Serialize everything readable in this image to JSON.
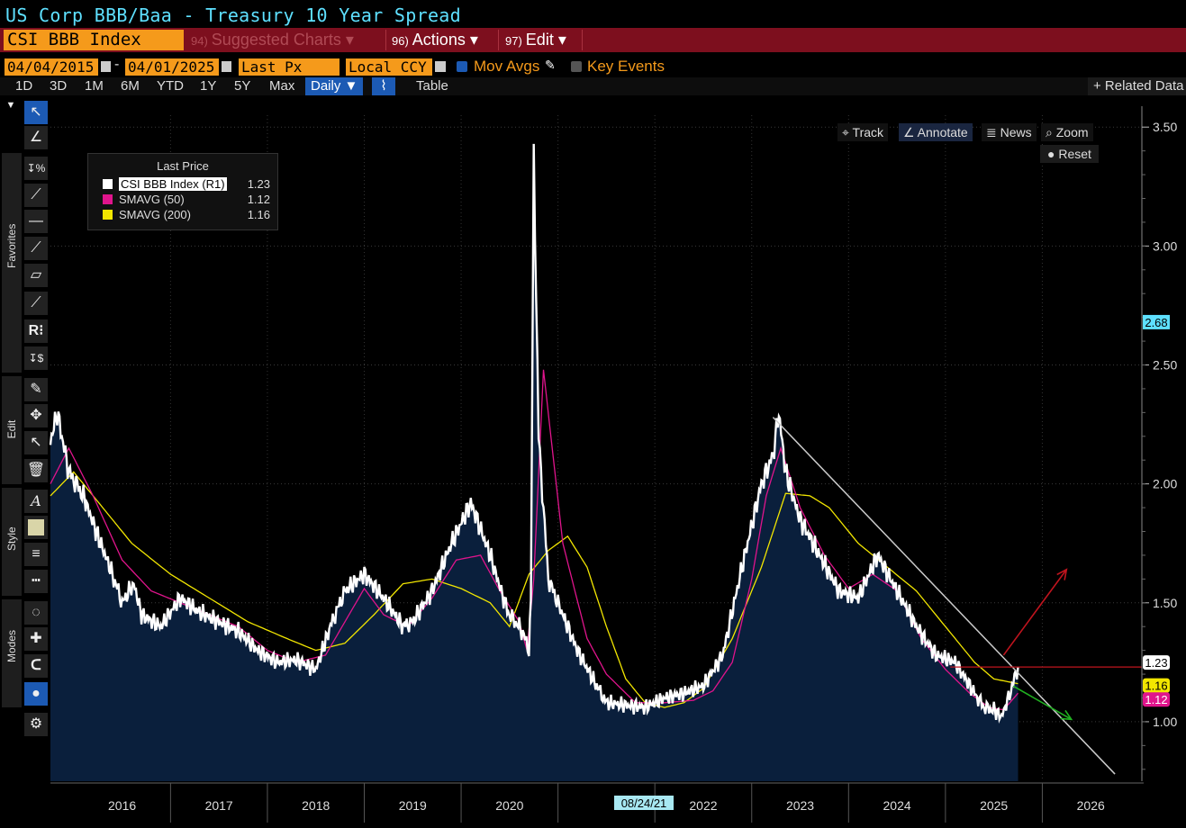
{
  "window": {
    "title": "US Corp BBB/Baa - Treasury 10 Year Spread"
  },
  "actionbar": {
    "ticker": "CSI BBB Index",
    "suggested_num": "94)",
    "suggested_label": "Suggested Charts",
    "actions_num": "96)",
    "actions_label": "Actions",
    "edit_num": "97)",
    "edit_label": "Edit"
  },
  "daterow": {
    "start_date": "04/04/2015",
    "end_date": "04/01/2025",
    "dash": "-",
    "field": "Last Px",
    "currency": "Local CCY",
    "mov_avgs": "Mov Avgs",
    "key_events": "Key Events"
  },
  "ranges": [
    "1D",
    "3D",
    "1M",
    "6M",
    "YTD",
    "1Y",
    "5Y",
    "Max"
  ],
  "range_extra": {
    "frequency": "Daily ▼",
    "table": "Table",
    "related": "+ Related Data"
  },
  "toolbar": {
    "favorites": "Favorites",
    "edit": "Edit",
    "style": "Style",
    "modes": "Modes"
  },
  "zoom": {
    "track": "Track",
    "annotate": "Annotate",
    "news": "News",
    "zoom": "Zoom",
    "reset": "Reset"
  },
  "legend": {
    "header": "Last Price",
    "items": [
      {
        "name": "CSI BBB Index  (R1)",
        "value": "1.23",
        "color": "#ffffff"
      },
      {
        "name": "SMAVG (50)",
        "value": "1.12",
        "color": "#e0148c"
      },
      {
        "name": "SMAVG (200)",
        "value": "1.16",
        "color": "#f2e600"
      }
    ]
  },
  "cursor_date": "08/24/21",
  "colors": {
    "area": "#0a1f3c",
    "price": "#ffffff",
    "sma50": "#e0148c",
    "sma200": "#f2e600",
    "accent": "#f59a1b",
    "bar": "#7d0f1e"
  },
  "chart_data": {
    "type": "line",
    "title": "US Corp BBB/Baa - Treasury 10 Year Spread",
    "xlabel": "",
    "ylabel": "",
    "xlim": [
      2015.26,
      2026.5
    ],
    "ylim": [
      0.75,
      3.55
    ],
    "yticks": [
      1.0,
      1.5,
      2.0,
      2.5,
      3.0,
      3.5
    ],
    "ytick_labels": [
      "1.00",
      "1.50",
      "2.00",
      "2.50",
      "3.00",
      "3.50"
    ],
    "xtick_labels": [
      "2016",
      "2017",
      "2018",
      "2019",
      "2020",
      "2022",
      "2023",
      "2024",
      "2025",
      "2026"
    ],
    "xtick_positions": [
      2016,
      2017,
      2018,
      2019,
      2020,
      2022,
      2023,
      2024,
      2025,
      2026
    ],
    "series": [
      {
        "name": "CSI BBB Index (R1)",
        "x": [
          2015.26,
          2015.33,
          2015.45,
          2015.6,
          2015.75,
          2015.9,
          2016.0,
          2016.12,
          2016.2,
          2016.4,
          2016.6,
          2016.8,
          2017.0,
          2017.2,
          2017.4,
          2017.6,
          2017.8,
          2018.0,
          2018.15,
          2018.3,
          2018.5,
          2018.7,
          2018.9,
          2019.0,
          2019.2,
          2019.4,
          2019.6,
          2019.8,
          2019.95,
          2020.0,
          2020.1,
          2020.16,
          2020.2,
          2020.22,
          2020.25,
          2020.3,
          2020.4,
          2020.5,
          2020.7,
          2020.9,
          2021.0,
          2021.2,
          2021.4,
          2021.6,
          2021.8,
          2022.0,
          2022.2,
          2022.4,
          2022.6,
          2022.72,
          2022.78,
          2022.85,
          2023.0,
          2023.2,
          2023.4,
          2023.6,
          2023.8,
          2024.0,
          2024.2,
          2024.4,
          2024.6,
          2024.8,
          2024.9,
          2025.0,
          2025.08,
          2025.15,
          2025.25
        ],
        "values": [
          2.18,
          2.3,
          2.05,
          1.95,
          1.78,
          1.62,
          1.5,
          1.58,
          1.45,
          1.4,
          1.52,
          1.46,
          1.42,
          1.38,
          1.3,
          1.25,
          1.26,
          1.22,
          1.4,
          1.55,
          1.62,
          1.52,
          1.4,
          1.42,
          1.55,
          1.75,
          1.92,
          1.7,
          1.5,
          1.45,
          1.4,
          1.35,
          1.3,
          1.5,
          3.38,
          2.2,
          1.6,
          1.5,
          1.3,
          1.15,
          1.08,
          1.07,
          1.06,
          1.1,
          1.12,
          1.15,
          1.28,
          1.65,
          2.0,
          2.12,
          2.3,
          2.05,
          1.85,
          1.7,
          1.55,
          1.52,
          1.7,
          1.55,
          1.4,
          1.28,
          1.25,
          1.12,
          1.06,
          1.05,
          1.02,
          1.1,
          1.23
        ]
      },
      {
        "name": "SMAVG (50)",
        "x": [
          2015.26,
          2015.45,
          2015.7,
          2016.0,
          2016.3,
          2016.6,
          2016.9,
          2017.2,
          2017.5,
          2017.8,
          2018.1,
          2018.3,
          2018.5,
          2018.7,
          2018.95,
          2019.2,
          2019.45,
          2019.7,
          2019.9,
          2020.1,
          2020.18,
          2020.25,
          2020.35,
          2020.55,
          2020.8,
          2021.0,
          2021.3,
          2021.6,
          2021.9,
          2022.1,
          2022.3,
          2022.5,
          2022.65,
          2022.8,
          2023.0,
          2023.25,
          2023.5,
          2023.75,
          2024.0,
          2024.25,
          2024.5,
          2024.75,
          2024.95,
          2025.1,
          2025.25
        ],
        "values": [
          2.0,
          2.15,
          1.95,
          1.68,
          1.55,
          1.5,
          1.45,
          1.4,
          1.3,
          1.25,
          1.28,
          1.42,
          1.56,
          1.45,
          1.4,
          1.52,
          1.68,
          1.7,
          1.55,
          1.42,
          1.3,
          1.6,
          2.48,
          1.75,
          1.35,
          1.2,
          1.08,
          1.08,
          1.09,
          1.13,
          1.25,
          1.6,
          1.95,
          2.15,
          1.9,
          1.7,
          1.56,
          1.62,
          1.55,
          1.35,
          1.22,
          1.12,
          1.06,
          1.05,
          1.12
        ]
      },
      {
        "name": "SMAVG (200)",
        "x": [
          2015.26,
          2015.5,
          2015.8,
          2016.1,
          2016.5,
          2016.9,
          2017.3,
          2017.7,
          2018.0,
          2018.3,
          2018.6,
          2018.9,
          2019.2,
          2019.5,
          2019.8,
          2020.0,
          2020.2,
          2020.4,
          2020.6,
          2020.8,
          2021.0,
          2021.2,
          2021.4,
          2021.6,
          2021.8,
          2022.0,
          2022.3,
          2022.6,
          2022.85,
          2023.1,
          2023.3,
          2023.6,
          2023.9,
          2024.2,
          2024.5,
          2024.8,
          2025.0,
          2025.25
        ],
        "values": [
          1.95,
          2.05,
          1.9,
          1.75,
          1.62,
          1.52,
          1.42,
          1.35,
          1.3,
          1.33,
          1.45,
          1.58,
          1.6,
          1.56,
          1.5,
          1.4,
          1.62,
          1.72,
          1.78,
          1.65,
          1.4,
          1.18,
          1.08,
          1.06,
          1.08,
          1.14,
          1.35,
          1.65,
          1.96,
          1.95,
          1.9,
          1.75,
          1.65,
          1.55,
          1.4,
          1.25,
          1.18,
          1.16
        ]
      }
    ],
    "trendline": {
      "x": [
        2022.72,
        2026.25
      ],
      "values": [
        2.28,
        0.78
      ],
      "color": "#cccccc"
    },
    "hline": {
      "value": 1.23,
      "x_from": 2024.55,
      "color": "#c0141e"
    },
    "area_fill": true,
    "arrows": [
      {
        "name": "up-arrow",
        "x": [
          2025.1,
          2025.75
        ],
        "values": [
          1.28,
          1.64
        ],
        "color": "#c0141e"
      },
      {
        "name": "down-arrow",
        "x": [
          2025.2,
          2025.8
        ],
        "values": [
          1.15,
          1.01
        ],
        "color": "#20b020"
      }
    ],
    "axis_flags": [
      {
        "label": "2.68",
        "value": 2.68,
        "bg": "#5ee0ff",
        "fg": "#000000"
      },
      {
        "label": "1.23",
        "value": 1.23,
        "bg": "#ffffff",
        "fg": "#000000"
      },
      {
        "label": "1.16",
        "value": 1.16,
        "bg": "#f2e600",
        "fg": "#000000"
      },
      {
        "label": "1.12",
        "value": 1.12,
        "bg": "#e0148c",
        "fg": "#ffffff"
      }
    ]
  }
}
